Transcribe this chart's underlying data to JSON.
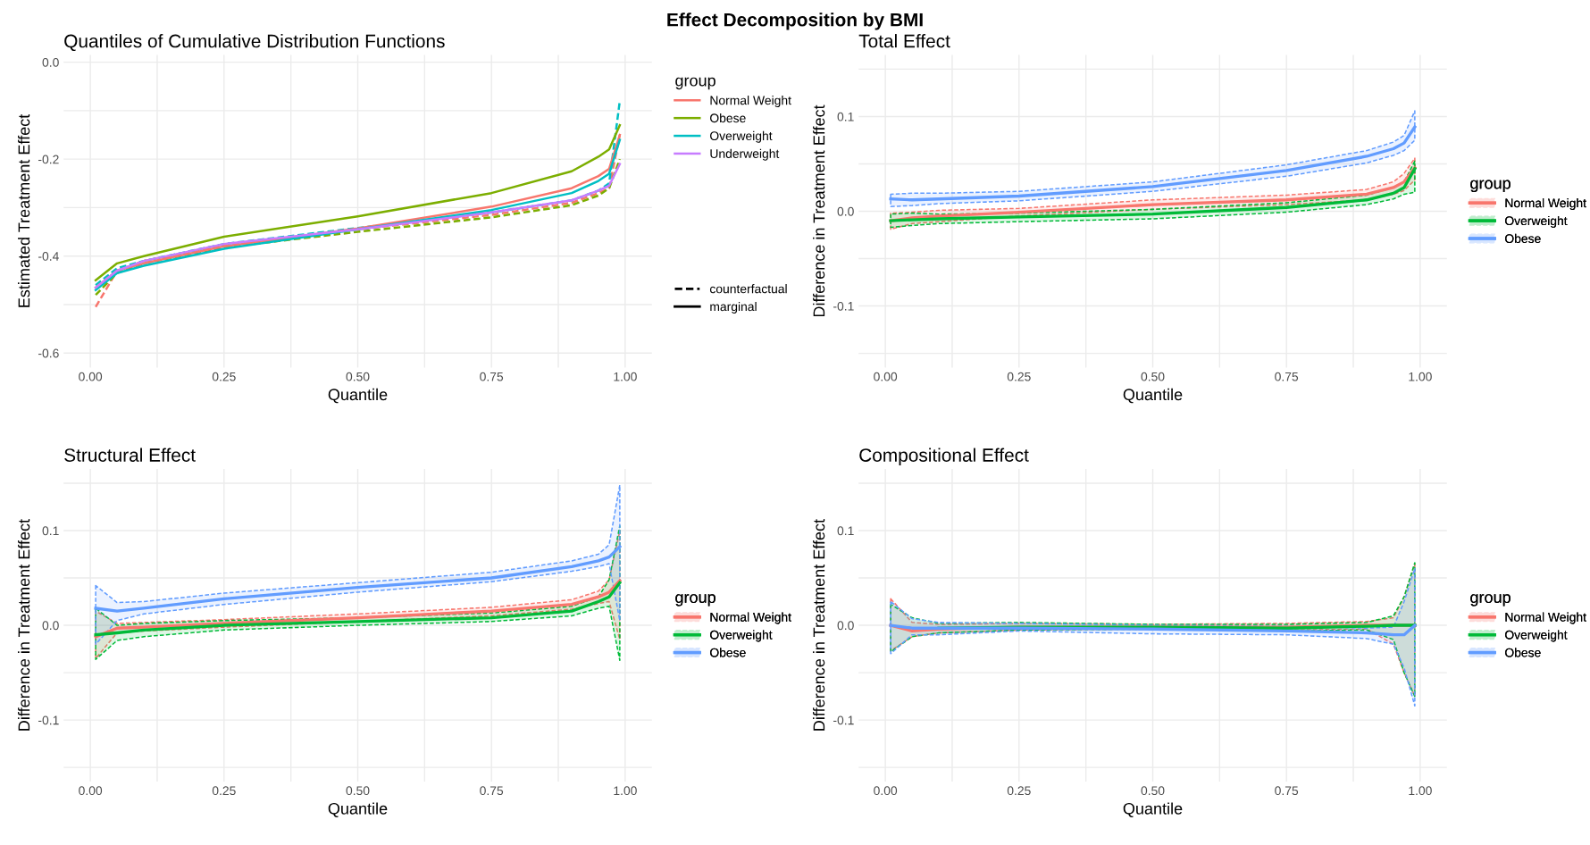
{
  "chart_data": [
    {
      "type": "line",
      "title": "Quantiles of Cumulative Distribution Functions",
      "xlabel": "Quantile",
      "ylabel": "Estimated Treatment Effect",
      "legend_title": "group",
      "legend": "right",
      "grid": true,
      "annotations": [
        "Effect Decomposition by BMI",
        "counterfactual",
        "marginal"
      ],
      "x": [
        0.01,
        0.05,
        0.1,
        0.25,
        0.5,
        0.75,
        0.9,
        0.95,
        0.97,
        0.99
      ],
      "xlim": [
        -0.05,
        1.05
      ],
      "xticks": [
        {
          "value": 0,
          "label": "0.00"
        },
        {
          "value": 0.125,
          "label": null
        },
        {
          "value": 0.25,
          "label": "0.25"
        },
        {
          "value": 0.375,
          "label": null
        },
        {
          "value": 0.5,
          "label": "0.50"
        },
        {
          "value": 0.625,
          "label": null
        },
        {
          "value": 0.75,
          "label": "0.75"
        },
        {
          "value": 0.875,
          "label": null
        },
        {
          "value": 1,
          "label": "1.00"
        }
      ],
      "ylim": [
        -0.63,
        0.015
      ],
      "yticks": [
        {
          "value": -0.6,
          "label": "-0.6"
        },
        {
          "value": -0.5,
          "label": null
        },
        {
          "value": -0.4,
          "label": "-0.4"
        },
        {
          "value": -0.3,
          "label": null
        },
        {
          "value": -0.2,
          "label": "-0.2"
        },
        {
          "value": -0.1,
          "label": null
        },
        {
          "value": 0,
          "label": "0.0"
        }
      ],
      "series": [
        {
          "color": "#f8766d",
          "line_style": "dashed",
          "values": [
            -0.505,
            -0.43,
            -0.41,
            -0.378,
            -0.345,
            -0.315,
            -0.29,
            -0.27,
            -0.26,
            -0.15
          ]
        },
        {
          "color": "#7cae00",
          "line_style": "dashed",
          "values": [
            -0.48,
            -0.435,
            -0.415,
            -0.382,
            -0.35,
            -0.32,
            -0.295,
            -0.275,
            -0.26,
            -0.2
          ]
        },
        {
          "color": "#00bfc4",
          "line_style": "dashed",
          "values": [
            -0.46,
            -0.425,
            -0.41,
            -0.375,
            -0.342,
            -0.31,
            -0.285,
            -0.265,
            -0.25,
            -0.08
          ]
        },
        {
          "name": "Normal Weight",
          "color": "#f8766d",
          "line_style": "solid",
          "values": [
            -0.465,
            -0.43,
            -0.415,
            -0.38,
            -0.343,
            -0.298,
            -0.26,
            -0.235,
            -0.22,
            -0.15
          ]
        },
        {
          "name": "Obese",
          "color": "#7cae00",
          "line_style": "solid",
          "values": [
            -0.45,
            -0.415,
            -0.4,
            -0.36,
            -0.318,
            -0.27,
            -0.225,
            -0.195,
            -0.18,
            -0.13
          ]
        },
        {
          "name": "Overweight",
          "color": "#00bfc4",
          "line_style": "solid",
          "values": [
            -0.47,
            -0.435,
            -0.42,
            -0.385,
            -0.345,
            -0.305,
            -0.27,
            -0.245,
            -0.23,
            -0.16
          ]
        },
        {
          "name": "Underweight",
          "color": "#c77cff",
          "line_style": "solid",
          "values": [
            -0.465,
            -0.43,
            -0.41,
            -0.375,
            -0.345,
            -0.31,
            -0.285,
            -0.265,
            -0.255,
            -0.21
          ]
        }
      ]
    },
    {
      "type": "line",
      "title": "Total Effect",
      "xlabel": "Quantile",
      "ylabel": "Difference in Treatment Effect",
      "legend_title": "group",
      "legend": "right",
      "grid": true,
      "x": [
        0.01,
        0.05,
        0.1,
        0.25,
        0.5,
        0.75,
        0.9,
        0.95,
        0.97,
        0.99
      ],
      "xlim": [
        -0.05,
        1.05
      ],
      "xticks": [
        {
          "value": 0,
          "label": "0.00"
        },
        {
          "value": 0.125,
          "label": null
        },
        {
          "value": 0.25,
          "label": "0.25"
        },
        {
          "value": 0.375,
          "label": null
        },
        {
          "value": 0.5,
          "label": "0.50"
        },
        {
          "value": 0.625,
          "label": null
        },
        {
          "value": 0.75,
          "label": "0.75"
        },
        {
          "value": 0.875,
          "label": null
        },
        {
          "value": 1,
          "label": "1.00"
        }
      ],
      "ylim": [
        -0.165,
        0.165
      ],
      "yticks": [
        {
          "value": -0.15,
          "label": null
        },
        {
          "value": -0.1,
          "label": "-0.1"
        },
        {
          "value": -0.05,
          "label": null
        },
        {
          "value": 0,
          "label": "0.0"
        },
        {
          "value": 0.05,
          "label": null
        },
        {
          "value": 0.1,
          "label": "0.1"
        },
        {
          "value": 0.15,
          "label": null
        }
      ],
      "series": [
        {
          "name": "Normal Weight",
          "color": "#f8766d",
          "line_style": "solid",
          "values": [
            -0.01,
            -0.007,
            -0.005,
            -0.001,
            0.007,
            0.012,
            0.018,
            0.025,
            0.031,
            0.046
          ],
          "lower": [
            -0.019,
            -0.013,
            -0.011,
            -0.005,
            0.002,
            0.007,
            0.012,
            0.018,
            0.022,
            0.033
          ],
          "upper": [
            -0.002,
            -0.001,
            0.001,
            0.003,
            0.012,
            0.017,
            0.023,
            0.031,
            0.04,
            0.056
          ]
        },
        {
          "name": "Overweight",
          "color": "#00ba38",
          "line_style": "solid",
          "values": [
            -0.01,
            -0.009,
            -0.008,
            -0.006,
            -0.003,
            0.004,
            0.012,
            0.019,
            0.025,
            0.045
          ],
          "lower": [
            -0.017,
            -0.015,
            -0.013,
            -0.011,
            -0.008,
            -0.001,
            0.007,
            0.013,
            0.018,
            0.02
          ],
          "upper": [
            -0.003,
            -0.002,
            -0.003,
            -0.002,
            0.002,
            0.009,
            0.017,
            0.025,
            0.031,
            0.053
          ]
        },
        {
          "name": "Obese",
          "color": "#619cff",
          "line_style": "solid",
          "values": [
            0.013,
            0.012,
            0.013,
            0.016,
            0.026,
            0.043,
            0.058,
            0.066,
            0.072,
            0.089
          ],
          "lower": [
            0.005,
            0.006,
            0.008,
            0.011,
            0.021,
            0.037,
            0.051,
            0.059,
            0.064,
            0.075
          ],
          "upper": [
            0.018,
            0.019,
            0.019,
            0.021,
            0.031,
            0.049,
            0.064,
            0.073,
            0.08,
            0.106
          ]
        }
      ]
    },
    {
      "type": "line",
      "title": "Structural Effect",
      "xlabel": "Quantile",
      "ylabel": "Difference in Treatment Effect",
      "legend_title": "group",
      "legend": "right",
      "grid": true,
      "x": [
        0.01,
        0.05,
        0.1,
        0.25,
        0.5,
        0.75,
        0.9,
        0.95,
        0.97,
        0.99
      ],
      "xlim": [
        -0.05,
        1.05
      ],
      "xticks": [
        {
          "value": 0,
          "label": "0.00"
        },
        {
          "value": 0.125,
          "label": null
        },
        {
          "value": 0.25,
          "label": "0.25"
        },
        {
          "value": 0.375,
          "label": null
        },
        {
          "value": 0.5,
          "label": "0.50"
        },
        {
          "value": 0.625,
          "label": null
        },
        {
          "value": 0.75,
          "label": "0.75"
        },
        {
          "value": 0.875,
          "label": null
        },
        {
          "value": 1,
          "label": "1.00"
        }
      ],
      "ylim": [
        -0.165,
        0.165
      ],
      "yticks": [
        {
          "value": -0.15,
          "label": null
        },
        {
          "value": -0.1,
          "label": "-0.1"
        },
        {
          "value": -0.05,
          "label": null
        },
        {
          "value": 0,
          "label": "0.0"
        },
        {
          "value": 0.05,
          "label": null
        },
        {
          "value": 0.1,
          "label": "0.1"
        },
        {
          "value": 0.15,
          "label": null
        }
      ],
      "series": [
        {
          "name": "Normal Weight",
          "color": "#f8766d",
          "line_style": "solid",
          "values": [
            -0.012,
            -0.003,
            -0.002,
            0.002,
            0.008,
            0.015,
            0.022,
            0.03,
            0.035,
            0.047
          ],
          "lower": [
            -0.035,
            -0.008,
            -0.006,
            -0.002,
            0.004,
            0.01,
            0.017,
            0.023,
            0.025,
            -0.015
          ],
          "upper": [
            0.015,
            0.002,
            0.003,
            0.006,
            0.012,
            0.019,
            0.027,
            0.036,
            0.048,
            0.1
          ]
        },
        {
          "name": "Overweight",
          "color": "#00ba38",
          "line_style": "solid",
          "values": [
            -0.01,
            -0.008,
            -0.005,
            0,
            0.004,
            0.008,
            0.015,
            0.025,
            0.03,
            0.045
          ],
          "lower": [
            -0.036,
            -0.016,
            -0.012,
            -0.005,
            0,
            0.004,
            0.01,
            0.018,
            0.02,
            -0.037
          ],
          "upper": [
            0.018,
            0,
            0.002,
            0.005,
            0.008,
            0.013,
            0.02,
            0.03,
            0.048,
            0.105
          ]
        },
        {
          "name": "Obese",
          "color": "#619cff",
          "line_style": "solid",
          "values": [
            0.018,
            0.015,
            0.018,
            0.028,
            0.04,
            0.05,
            0.062,
            0.068,
            0.072,
            0.083
          ],
          "lower": [
            -0.02,
            0.005,
            0.012,
            0.022,
            0.035,
            0.046,
            0.057,
            0.062,
            0.065,
            0.005
          ],
          "upper": [
            0.042,
            0.024,
            0.025,
            0.034,
            0.045,
            0.056,
            0.068,
            0.075,
            0.085,
            0.148
          ]
        }
      ]
    },
    {
      "type": "line",
      "title": "Compositional Effect",
      "xlabel": "Quantile",
      "ylabel": "Difference in Treatment Effect",
      "legend_title": "group",
      "legend": "right",
      "grid": true,
      "x": [
        0.01,
        0.05,
        0.1,
        0.25,
        0.5,
        0.75,
        0.9,
        0.95,
        0.97,
        0.99
      ],
      "xlim": [
        -0.05,
        1.05
      ],
      "xticks": [
        {
          "value": 0,
          "label": "0.00"
        },
        {
          "value": 0.125,
          "label": null
        },
        {
          "value": 0.25,
          "label": "0.25"
        },
        {
          "value": 0.375,
          "label": null
        },
        {
          "value": 0.5,
          "label": "0.50"
        },
        {
          "value": 0.625,
          "label": null
        },
        {
          "value": 0.75,
          "label": "0.75"
        },
        {
          "value": 0.875,
          "label": null
        },
        {
          "value": 1,
          "label": "1.00"
        }
      ],
      "ylim": [
        -0.165,
        0.165
      ],
      "yticks": [
        {
          "value": -0.15,
          "label": null
        },
        {
          "value": -0.1,
          "label": "-0.1"
        },
        {
          "value": -0.05,
          "label": null
        },
        {
          "value": 0,
          "label": "0.0"
        },
        {
          "value": 0.05,
          "label": null
        },
        {
          "value": 0.1,
          "label": "0.1"
        },
        {
          "value": 0.15,
          "label": null
        }
      ],
      "series": [
        {
          "name": "Normal Weight",
          "color": "#f8766d",
          "line_style": "solid",
          "values": [
            0,
            -0.006,
            -0.004,
            -0.002,
            -0.002,
            -0.002,
            0,
            0,
            0,
            0
          ],
          "lower": [
            -0.027,
            -0.012,
            -0.008,
            -0.005,
            -0.004,
            -0.005,
            -0.004,
            -0.02,
            -0.05,
            -0.075
          ],
          "upper": [
            0.028,
            0.003,
            0.001,
            0.002,
            0.001,
            0.002,
            0.004,
            0.008,
            0.03,
            0.065
          ]
        },
        {
          "name": "Overweight",
          "color": "#00ba38",
          "line_style": "solid",
          "values": [
            null,
            null,
            -0.003,
            -0.002,
            -0.002,
            -0.003,
            -0.001,
            0,
            0,
            0
          ],
          "lower": [
            -0.028,
            -0.012,
            -0.008,
            -0.005,
            -0.004,
            -0.006,
            -0.005,
            -0.015,
            -0.05,
            -0.075
          ],
          "upper": [
            0.022,
            0.008,
            0.002,
            0.003,
            0.001,
            0.001,
            0.003,
            0.01,
            0.03,
            0.066
          ]
        },
        {
          "name": "Obese",
          "color": "#619cff",
          "line_style": "solid",
          "values": [
            0,
            -0.003,
            -0.003,
            -0.003,
            -0.004,
            -0.006,
            -0.008,
            -0.01,
            -0.01,
            0
          ],
          "lower": [
            -0.03,
            -0.01,
            -0.01,
            -0.006,
            -0.009,
            -0.01,
            -0.014,
            -0.02,
            -0.045,
            -0.085
          ],
          "upper": [
            0.025,
            0.007,
            0.003,
            0.002,
            0,
            -0.001,
            -0.003,
            -0.002,
            0.025,
            0.06
          ]
        }
      ]
    }
  ]
}
